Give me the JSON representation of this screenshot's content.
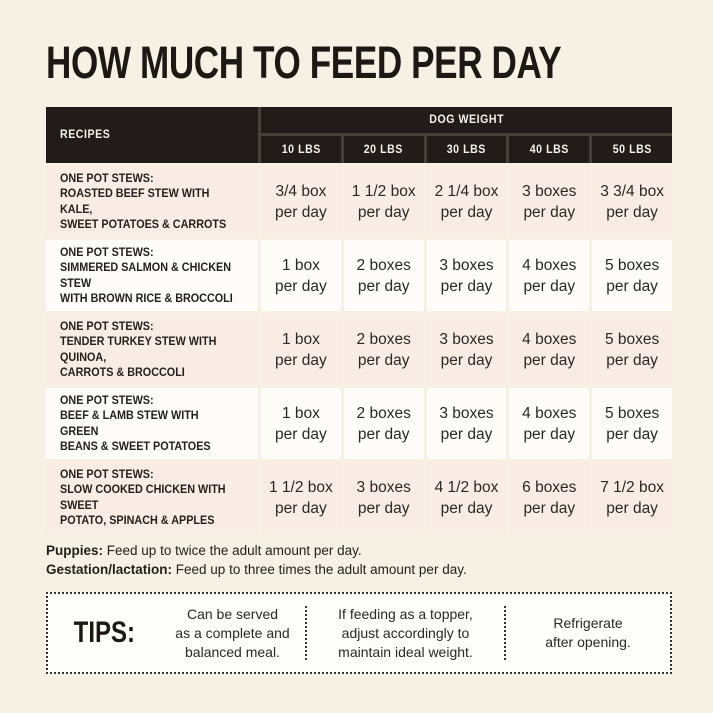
{
  "title": "HOW MUCH TO FEED PER DAY",
  "colors": {
    "background": "#f6f0e5",
    "header_dark": "#211c19",
    "header_divider": "#46403a",
    "row_pink": "#f9ece5",
    "row_white": "#fdfcf9",
    "text_dark": "#241f1b"
  },
  "table": {
    "recipes_label": "RECIPES",
    "dog_weight_label": "DOG WEIGHT",
    "weights": [
      "10 LBS",
      "20 LBS",
      "30 LBS",
      "40 LBS",
      "50 LBS"
    ],
    "per_day": "per day",
    "rows": [
      {
        "label": "ONE POT STEWS:",
        "name": "ROASTED BEEF STEW WITH KALE,\nSWEET POTATOES & CARROTS",
        "values": [
          "3/4 box",
          "1 1/2 box",
          "2 1/4 box",
          "3 boxes",
          "3 3/4 box"
        ]
      },
      {
        "label": "ONE POT STEWS:",
        "name": "SIMMERED SALMON & CHICKEN STEW\nWITH BROWN RICE & BROCCOLI",
        "values": [
          "1 box",
          "2 boxes",
          "3 boxes",
          "4 boxes",
          "5 boxes"
        ]
      },
      {
        "label": "ONE POT STEWS:",
        "name": "TENDER TURKEY STEW WITH QUINOA,\nCARROTS & BROCCOLI",
        "values": [
          "1 box",
          "2 boxes",
          "3 boxes",
          "4 boxes",
          "5 boxes"
        ]
      },
      {
        "label": "ONE POT STEWS:",
        "name": "BEEF & LAMB STEW WITH GREEN\nBEANS & SWEET POTATOES",
        "values": [
          "1 box",
          "2 boxes",
          "3 boxes",
          "4 boxes",
          "5 boxes"
        ]
      },
      {
        "label": "ONE POT STEWS:",
        "name": "SLOW COOKED CHICKEN WITH SWEET\nPOTATO, SPINACH & APPLES",
        "values": [
          "1 1/2 box",
          "3 boxes",
          "4 1/2 box",
          "6 boxes",
          "7 1/2 box"
        ]
      }
    ]
  },
  "notes": {
    "puppies_label": "Puppies:",
    "puppies_text": "Feed up to twice the adult amount per day.",
    "gestation_label": "Gestation/lactation:",
    "gestation_text": "Feed up to three times the adult amount per day."
  },
  "tips": {
    "label": "TIPS:",
    "items": [
      "Can be served\nas a complete and\nbalanced meal.",
      "If feeding as a topper,\nadjust accordingly to\nmaintain ideal weight.",
      "Refrigerate\nafter opening."
    ]
  },
  "chart_data": {
    "type": "table",
    "title": "HOW MUCH TO FEED PER DAY",
    "column_group": "DOG WEIGHT",
    "columns": [
      "RECIPES",
      "10 LBS",
      "20 LBS",
      "30 LBS",
      "40 LBS",
      "50 LBS"
    ],
    "rows": [
      [
        "ONE POT STEWS: ROASTED BEEF STEW WITH KALE, SWEET POTATOES & CARROTS",
        "3/4 box per day",
        "1 1/2 box per day",
        "2 1/4 box per day",
        "3 boxes per day",
        "3 3/4 box per day"
      ],
      [
        "ONE POT STEWS: SIMMERED SALMON & CHICKEN STEW WITH BROWN RICE & BROCCOLI",
        "1 box per day",
        "2 boxes per day",
        "3 boxes per day",
        "4 boxes per day",
        "5 boxes per day"
      ],
      [
        "ONE POT STEWS: TENDER TURKEY STEW WITH QUINOA, CARROTS & BROCCOLI",
        "1 box per day",
        "2 boxes per day",
        "3 boxes per day",
        "4 boxes per day",
        "5 boxes per day"
      ],
      [
        "ONE POT STEWS: BEEF & LAMB STEW WITH GREEN BEANS & SWEET POTATOES",
        "1 box per day",
        "2 boxes per day",
        "3 boxes per day",
        "4 boxes per day",
        "5 boxes per day"
      ],
      [
        "ONE POT STEWS: SLOW COOKED CHICKEN WITH SWEET POTATO, SPINACH & APPLES",
        "1 1/2 box per day",
        "3 boxes per day",
        "4 1/2 box per day",
        "6 boxes per day",
        "7 1/2 box per day"
      ]
    ],
    "footnotes": [
      "Puppies: Feed up to twice the adult amount per day.",
      "Gestation/lactation: Feed up to three times the adult amount per day."
    ],
    "tips": [
      "Can be served as a complete and balanced meal.",
      "If feeding as a topper, adjust accordingly to maintain ideal weight.",
      "Refrigerate after opening."
    ]
  }
}
